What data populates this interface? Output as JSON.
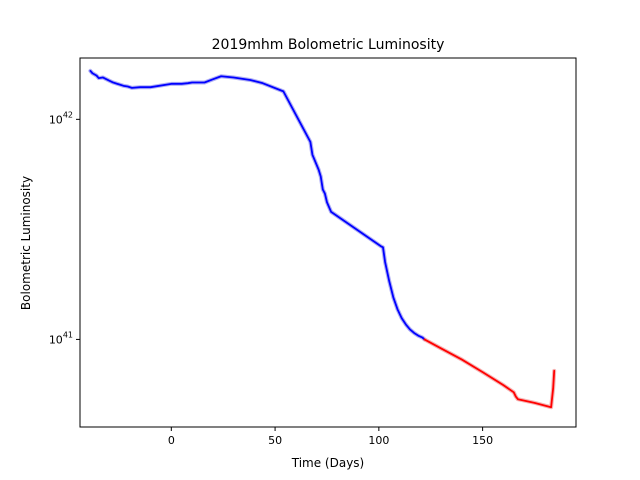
{
  "chart_data": {
    "type": "line",
    "title": "2019mhm Bolometric Luminosity",
    "xlabel": "Time (Days)",
    "ylabel": "Bolometric Luminosity",
    "xlim": [
      -44,
      195
    ],
    "ylim": [
      4e+40,
      1.9e+42
    ],
    "yscale": "log",
    "grid": false,
    "x_ticks": [
      {
        "value": 0,
        "label": "0"
      },
      {
        "value": 50,
        "label": "50"
      },
      {
        "value": 100,
        "label": "100"
      },
      {
        "value": 150,
        "label": "150"
      }
    ],
    "y_ticks": [
      {
        "value": 1e+41,
        "base": "10",
        "exp": "41"
      },
      {
        "value": 1e+42,
        "base": "10",
        "exp": "42"
      }
    ],
    "series": [
      {
        "color": "#0000ff",
        "band_color": "#9b9bf2",
        "x": [
          -39,
          -38,
          -36,
          -35,
          -33,
          -30,
          -28,
          -26,
          -25,
          -23,
          -21,
          -19,
          -15,
          -10,
          0,
          5,
          8,
          10,
          16,
          20,
          24,
          30,
          38,
          44,
          54,
          67,
          68,
          71,
          72,
          73,
          74,
          75,
          77,
          101,
          102,
          103,
          105,
          107,
          109,
          111,
          113,
          115,
          117,
          119,
          121,
          122
        ],
        "y": [
          1.66e+42,
          1.62e+42,
          1.58e+42,
          1.54e+42,
          1.55e+42,
          1.5e+42,
          1.47e+42,
          1.45e+42,
          1.44e+42,
          1.42e+42,
          1.41e+42,
          1.39e+42,
          1.4e+42,
          1.4e+42,
          1.45e+42,
          1.45e+42,
          1.46e+42,
          1.47e+42,
          1.47e+42,
          1.52e+42,
          1.57e+42,
          1.55e+42,
          1.51e+42,
          1.46e+42,
          1.34e+42,
          7.9e+41,
          6.9e+41,
          5.9e+41,
          5.5e+41,
          4.8e+41,
          4.6e+41,
          4.2e+41,
          3.8e+41,
          2.65e+41,
          2.62e+41,
          2.25e+41,
          1.84e+41,
          1.55e+41,
          1.37e+41,
          1.25e+41,
          1.17e+41,
          1.11e+41,
          1.07e+41,
          1.04e+41,
          1.02e+41,
          1e+41
        ]
      },
      {
        "color": "#ff0000",
        "band_color": "#f2a3a3",
        "x": [
          122,
          130,
          140,
          150,
          160,
          165,
          166,
          167,
          175,
          183,
          184,
          184.5
        ],
        "y": [
          1e+41,
          9.1e+40,
          8.1e+40,
          7.1e+40,
          6.2e+40,
          5.75e+40,
          5.5e+40,
          5.35e+40,
          5.15e+40,
          4.92e+40,
          6e+40,
          7.2e+40
        ]
      }
    ]
  }
}
